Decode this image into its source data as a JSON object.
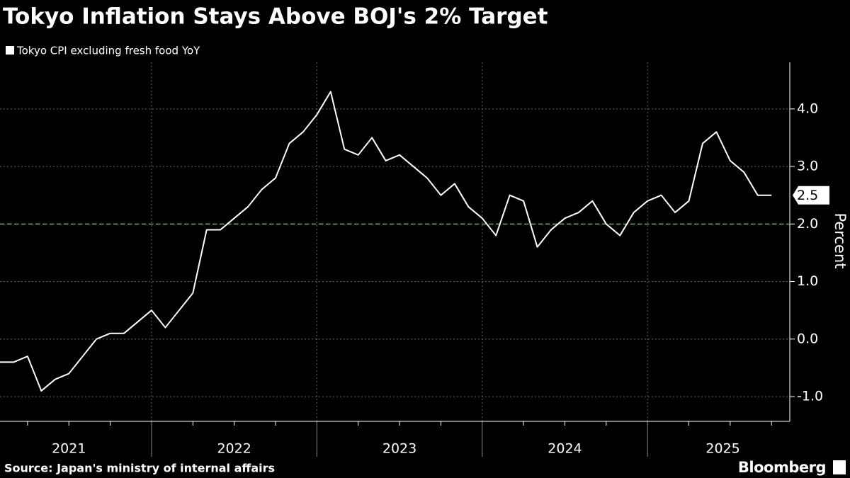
{
  "chart_data": {
    "type": "line",
    "title": "Tokyo Inflation Stays Above BOJ's 2% Target",
    "source": "Source: Japan's ministry of internal affairs",
    "brand": "Bloomberg",
    "y_label": "Percent",
    "xlabels": [
      "2021",
      "2022",
      "2023",
      "2024",
      "2025"
    ],
    "series": [
      {
        "name": "Tokyo CPI excluding fresh food YoY",
        "color": "#ffffff",
        "values": [
          -0.4,
          -0.4,
          -0.3,
          -0.9,
          -0.7,
          -0.6,
          -0.3,
          0.0,
          0.1,
          0.1,
          0.3,
          0.5,
          0.2,
          0.5,
          0.8,
          1.9,
          1.9,
          2.1,
          2.3,
          2.6,
          2.8,
          3.4,
          3.6,
          3.9,
          4.3,
          3.3,
          3.2,
          3.5,
          3.1,
          3.2,
          3.0,
          2.8,
          2.5,
          2.7,
          2.3,
          2.1,
          1.8,
          2.5,
          2.4,
          1.6,
          1.9,
          2.1,
          2.2,
          2.4,
          2.0,
          1.8,
          2.2,
          2.4,
          2.5,
          2.2,
          2.4,
          3.4,
          3.6,
          3.1,
          2.9,
          2.5,
          2.5
        ]
      }
    ],
    "reference_line": 2,
    "reference_color": "#8fd18f",
    "ylim": [
      -1.43,
      4.81
    ],
    "yticks": [
      {
        "value": -1,
        "label": "-1.0"
      },
      {
        "value": 0,
        "label": "0.0"
      },
      {
        "value": 1,
        "label": "1.0"
      },
      {
        "value": 2,
        "label": "2.0"
      },
      {
        "value": 3,
        "label": "3.0"
      },
      {
        "value": 4,
        "label": "4.0"
      }
    ],
    "grid": true
  }
}
